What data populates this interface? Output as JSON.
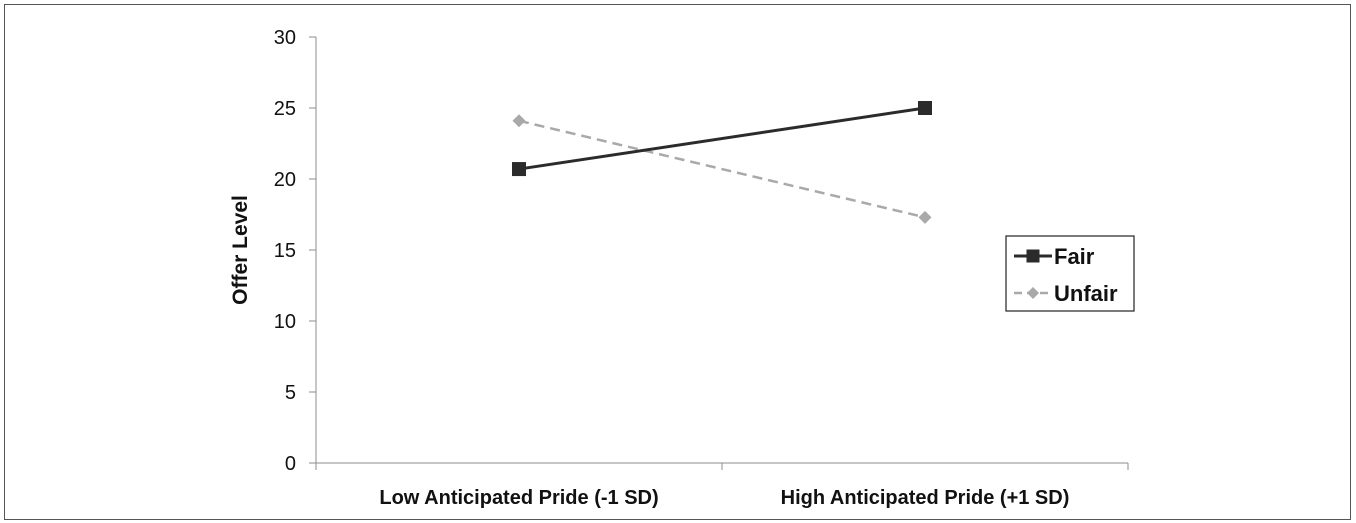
{
  "chart_data": {
    "type": "line",
    "categories": [
      "Low Anticipated Pride (-1 SD)",
      "High Anticipated Pride (+1 SD)"
    ],
    "series": [
      {
        "name": "Fair",
        "values": [
          20.7,
          25.0
        ],
        "color": "#2b2b2b",
        "dash": "solid",
        "marker": "square"
      },
      {
        "name": "Unfair",
        "values": [
          24.1,
          17.3
        ],
        "color": "#a9a9a9",
        "dash": "dashed",
        "marker": "diamond"
      }
    ],
    "title": "",
    "xlabel": "",
    "ylabel": "Offer Level",
    "ylim": [
      0,
      30
    ],
    "yticks": [
      "0",
      "5",
      "10",
      "15",
      "20",
      "25",
      "30"
    ],
    "grid": false,
    "legend": "right"
  }
}
